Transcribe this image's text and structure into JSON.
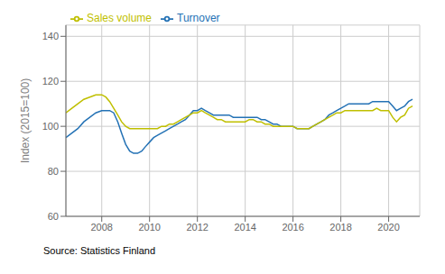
{
  "chart_data": {
    "type": "line",
    "ylabel": "Index (2015=100)",
    "annotations": [
      "Source: Statistics Finland"
    ],
    "x": [
      2006.5,
      2006.75,
      2007.0,
      2007.25,
      2007.5,
      2007.75,
      2008.0,
      2008.17,
      2008.33,
      2008.5,
      2008.67,
      2008.83,
      2009.0,
      2009.17,
      2009.33,
      2009.5,
      2009.67,
      2009.83,
      2010.0,
      2010.17,
      2010.33,
      2010.5,
      2010.67,
      2010.83,
      2011.0,
      2011.17,
      2011.33,
      2011.5,
      2011.67,
      2011.83,
      2012.0,
      2012.17,
      2012.33,
      2012.5,
      2012.67,
      2012.83,
      2013.0,
      2013.17,
      2013.33,
      2013.5,
      2013.67,
      2013.83,
      2014.0,
      2014.17,
      2014.33,
      2014.5,
      2014.67,
      2014.83,
      2015.0,
      2015.17,
      2015.33,
      2015.5,
      2015.67,
      2015.83,
      2016.0,
      2016.17,
      2016.33,
      2016.5,
      2016.67,
      2016.83,
      2017.0,
      2017.17,
      2017.33,
      2017.5,
      2017.67,
      2017.83,
      2018.0,
      2018.17,
      2018.33,
      2018.5,
      2018.67,
      2018.83,
      2019.0,
      2019.17,
      2019.33,
      2019.5,
      2019.67,
      2019.83,
      2020.0,
      2020.17,
      2020.33,
      2020.5,
      2020.67,
      2020.83,
      2021.0
    ],
    "series": [
      {
        "name": "Turnover",
        "color": "#2472b5",
        "values": [
          95,
          97,
          99,
          102,
          104,
          106,
          107,
          107,
          107,
          106,
          102,
          97,
          92,
          89,
          88,
          88,
          89,
          91,
          93,
          95,
          96,
          97,
          98,
          99,
          100,
          101,
          102,
          103,
          105,
          107,
          107,
          108,
          107,
          106,
          105,
          105,
          105,
          105,
          105,
          104,
          104,
          104,
          104,
          104,
          104,
          104,
          103,
          103,
          102,
          101,
          101,
          100,
          100,
          100,
          100,
          99,
          99,
          99,
          99,
          100,
          101,
          102,
          103,
          105,
          106,
          107,
          108,
          109,
          110,
          110,
          110,
          110,
          110,
          110,
          111,
          111,
          111,
          111,
          111,
          109,
          107,
          108,
          109,
          111,
          112
        ]
      },
      {
        "name": "Sales volume",
        "color": "#bfbf00",
        "values": [
          106,
          108,
          110,
          112,
          113,
          114,
          114,
          113,
          111,
          108,
          105,
          102,
          100,
          99,
          99,
          99,
          99,
          99,
          99,
          99,
          99,
          100,
          100,
          101,
          101,
          102,
          103,
          104,
          105,
          106,
          106,
          107,
          106,
          105,
          104,
          103,
          103,
          102,
          102,
          102,
          102,
          102,
          102,
          103,
          103,
          102,
          102,
          101,
          101,
          100,
          100,
          100,
          100,
          100,
          100,
          99,
          99,
          99,
          99,
          100,
          101,
          102,
          103,
          104,
          105,
          106,
          106,
          107,
          107,
          107,
          107,
          107,
          107,
          107,
          107,
          108,
          107,
          107,
          107,
          104,
          102,
          104,
          105,
          108,
          109
        ]
      }
    ],
    "xlim": [
      2006.5,
      2021.3
    ],
    "xticks": [
      2008,
      2010,
      2012,
      2014,
      2016,
      2018,
      2020
    ],
    "ylim": [
      60,
      145
    ],
    "yticks": [
      60,
      80,
      100,
      120,
      140
    ],
    "grid": true,
    "legend": "upper left"
  }
}
